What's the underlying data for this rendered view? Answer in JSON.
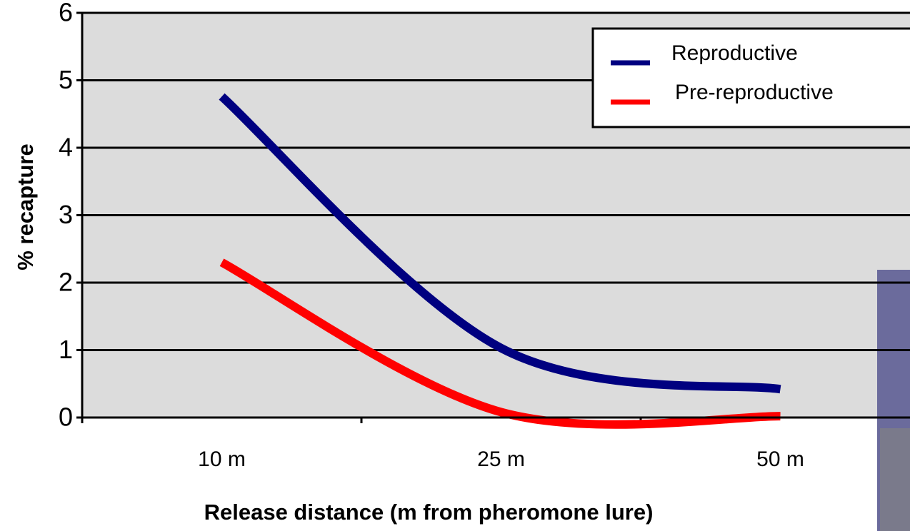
{
  "chart_data": {
    "type": "line",
    "x_label": "Release distance (m from pheromone lure)",
    "y_label": "% recapture",
    "categories": [
      "10 m",
      "25 m",
      "50 m"
    ],
    "series": [
      {
        "name": "Reproductive",
        "color": "#000080",
        "values": [
          4.76,
          1.03,
          0.42
        ]
      },
      {
        "name": "Pre-reproductive",
        "color": "#ff0000",
        "values": [
          2.3,
          0.08,
          0.02
        ]
      }
    ],
    "ylim": [
      0,
      6
    ],
    "yticks": [
      0,
      1,
      2,
      3,
      4,
      5,
      6
    ],
    "grid": true,
    "legend": "upper right"
  }
}
